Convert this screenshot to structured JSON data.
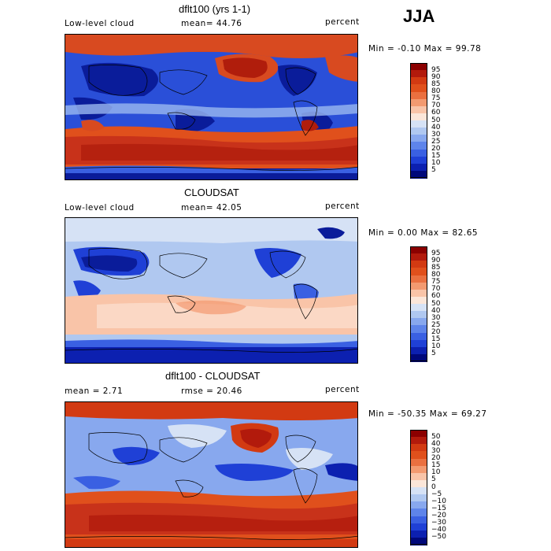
{
  "season": "JJA",
  "panels": [
    {
      "title": "dflt100 (yrs 1-1)",
      "left_label": "Low-level cloud",
      "center_label": "mean=  44.76",
      "right_label": "percent",
      "minmax": "Min =  -0.10 Max =  99.78"
    },
    {
      "title": "CLOUDSAT",
      "left_label": "Low-level cloud",
      "center_label": "mean=  42.05",
      "right_label": "percent",
      "minmax": "Min =   0.00 Max =  82.65"
    },
    {
      "title": "dflt100 - CLOUDSAT",
      "left_label": "mean =   2.71",
      "center_label": "rmse =  20.46",
      "right_label": "percent",
      "minmax": "Min = -50.35 Max =  69.27"
    }
  ],
  "colorbar_levels": [
    "95",
    "90",
    "85",
    "80",
    "75",
    "70",
    "60",
    "50",
    "40",
    "30",
    "25",
    "20",
    "15",
    "10",
    "5"
  ],
  "colorbar_colors": [
    "#8b0000",
    "#b21a0c",
    "#d23a12",
    "#e0501c",
    "#ea7040",
    "#f39a70",
    "#f9c4a8",
    "#fbe6d9",
    "#d6e2f5",
    "#b0c8f0",
    "#88a8ee",
    "#5e84ea",
    "#3a60e2",
    "#1f40d6",
    "#0c20b0",
    "#00087a"
  ],
  "diff_levels": [
    "50",
    "40",
    "30",
    "20",
    "15",
    "10",
    "5",
    "0",
    "−5",
    "−10",
    "−15",
    "−20",
    "−30",
    "−40",
    "−50"
  ],
  "diff_colors": [
    "#8b0000",
    "#b21a0c",
    "#d23a12",
    "#e0501c",
    "#ea7040",
    "#f39a70",
    "#f9c4a8",
    "#fbe6d9",
    "#d6e2f5",
    "#b0c8f0",
    "#88a8ee",
    "#5e84ea",
    "#3a60e2",
    "#1f40d6",
    "#0c20b0",
    "#00087a"
  ]
}
